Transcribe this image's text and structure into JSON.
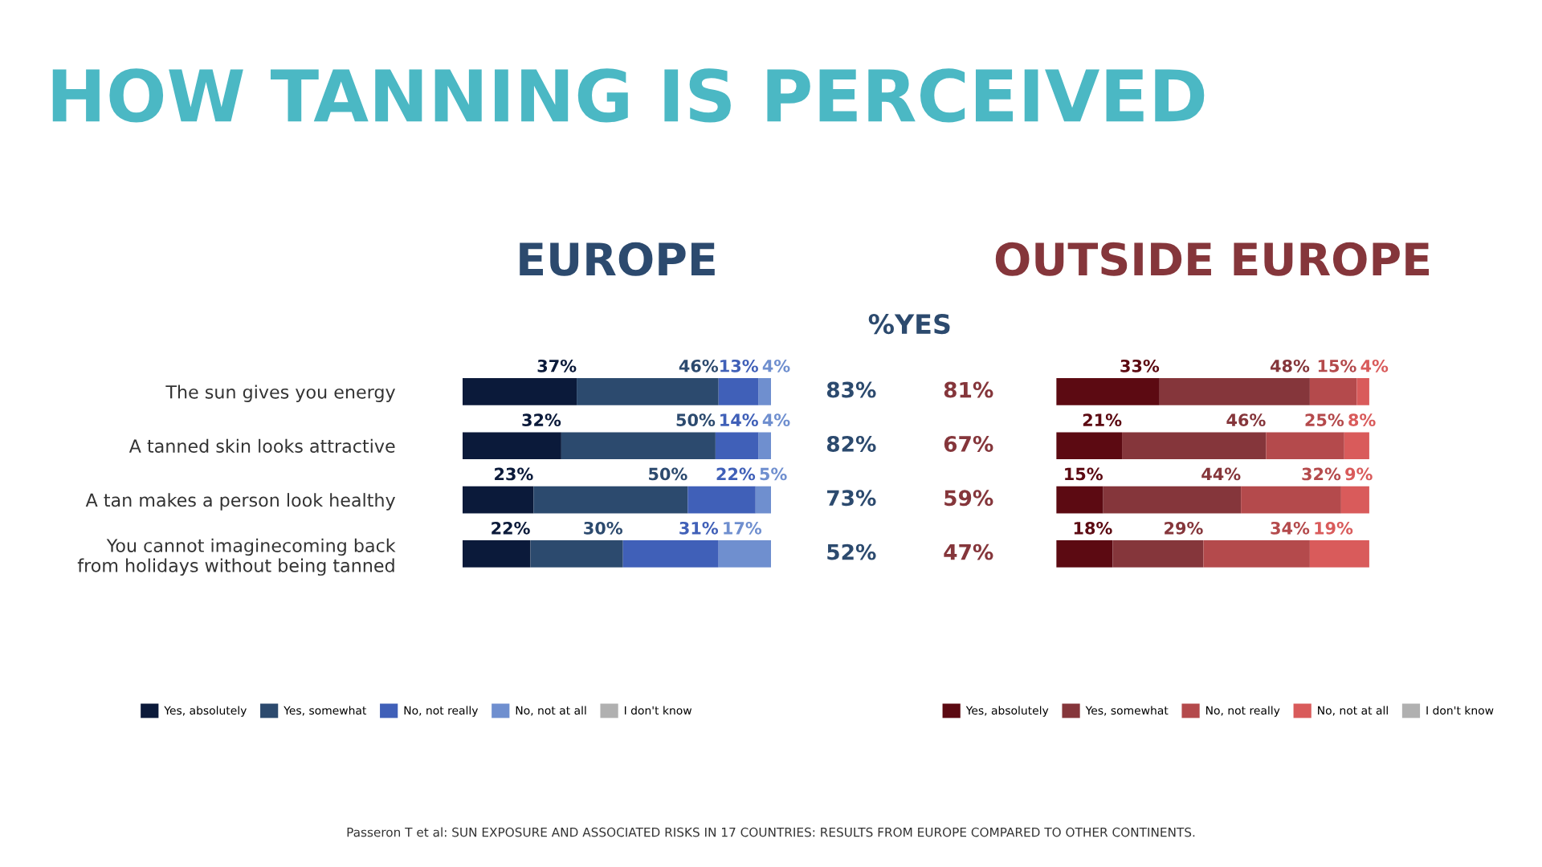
{
  "chart_data": [
    {
      "type": "bar",
      "orientation": "horizontal",
      "stacked": true,
      "title": "HOW TANNING IS PERCEIVED",
      "subtitle": "EUROPE",
      "categories": [
        "The sun gives you energy",
        "A tanned skin looks attractive",
        "A tan makes a person look healthy",
        "You cannot imaginecoming back\nfrom holidays without being tanned"
      ],
      "series": [
        {
          "name": "Yes, absolutely",
          "color": "#0b1a3a",
          "values": [
            37,
            32,
            23,
            22
          ],
          "value_labels": [
            "37%",
            "32%",
            "23%",
            "22%"
          ]
        },
        {
          "name": "Yes, somewhat",
          "color": "#2c4a6e",
          "values": [
            46,
            50,
            50,
            30
          ],
          "value_labels": [
            "46%",
            "50%",
            "50%",
            "30%"
          ]
        },
        {
          "name": "No, not really",
          "color": "#4060b8",
          "values": [
            13,
            14,
            22,
            31
          ],
          "value_labels": [
            "13%",
            "14%",
            "22%",
            "31%"
          ]
        },
        {
          "name": "No, not at all",
          "color": "#6f8fcf",
          "values": [
            4,
            4,
            5,
            17
          ],
          "value_labels": [
            "4%",
            "4%",
            "5%",
            "17%"
          ]
        },
        {
          "name": "I don't know",
          "color": "#b0b0b0",
          "values": [
            0,
            0,
            0,
            0
          ]
        }
      ],
      "legend": "bottom",
      "tick_labels": "y",
      "grid": false,
      "annotations": [
        "%YES",
        "83%",
        "82%",
        "73%",
        "52%",
        "Passeron T et al: SUN EXPOSURE AND ASSOCIATED RISKS IN 17 COUNTRIES: RESULTS FROM EUROPE COMPARED TO OTHER CONTINENTS."
      ]
    },
    {
      "type": "bar",
      "orientation": "horizontal",
      "stacked": true,
      "subtitle": "OUTSIDE EUROPE",
      "categories": [
        null,
        null,
        null,
        null
      ],
      "series": [
        {
          "name": "Yes, absolutely",
          "color": "#5c0a12",
          "values": [
            33,
            21,
            15,
            18
          ],
          "value_labels": [
            "33%",
            "21%",
            "15%",
            "18%"
          ]
        },
        {
          "name": "Yes, somewhat",
          "color": "#85363b",
          "values": [
            48,
            46,
            44,
            29
          ],
          "value_labels": [
            "48%",
            "46%",
            "44%",
            "29%"
          ]
        },
        {
          "name": "No, not really",
          "color": "#b44a4c",
          "values": [
            15,
            25,
            32,
            34
          ],
          "value_labels": [
            "15%",
            "25%",
            "32%",
            "34%"
          ]
        },
        {
          "name": "No, not at all",
          "color": "#d95b5b",
          "values": [
            4,
            8,
            9,
            19
          ],
          "value_labels": [
            "4%",
            "8%",
            "9%",
            "19%"
          ]
        },
        {
          "name": "I don't know",
          "color": "#b0b0b0",
          "values": [
            0,
            0,
            0,
            0
          ]
        }
      ],
      "legend": "bottom",
      "tick_labels": false,
      "grid": false,
      "annotations": [
        "81%",
        "67%",
        "59%",
        "47%"
      ]
    }
  ]
}
